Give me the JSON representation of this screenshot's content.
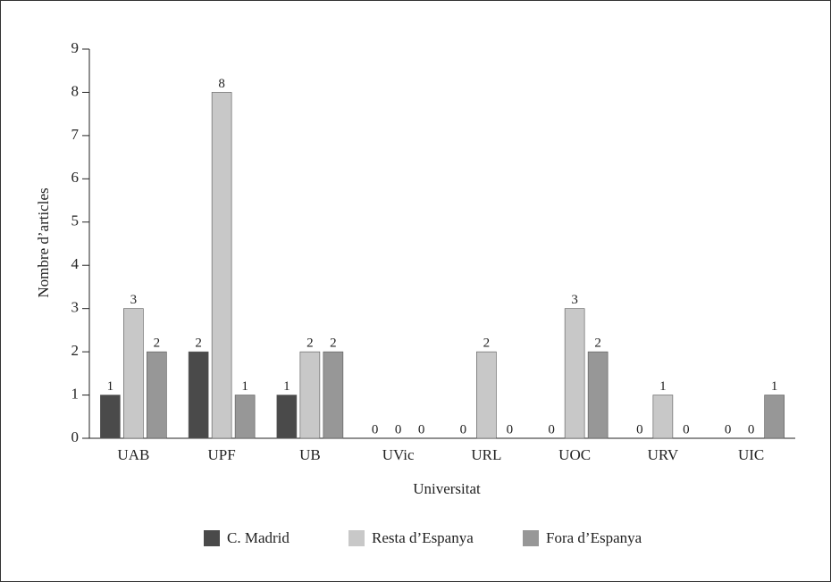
{
  "chart_data": {
    "type": "bar",
    "categories": [
      "UAB",
      "UPF",
      "UB",
      "UVic",
      "URL",
      "UOC",
      "URV",
      "UIC"
    ],
    "series": [
      {
        "name": "C. Madrid",
        "color": "#4a4a4a",
        "values": [
          1,
          2,
          1,
          0,
          0,
          0,
          0,
          0
        ]
      },
      {
        "name": "Resta d’Espanya",
        "color": "#c8c8c8",
        "values": [
          3,
          8,
          2,
          0,
          2,
          3,
          1,
          0
        ]
      },
      {
        "name": "Fora d’Espanya",
        "color": "#979797",
        "values": [
          2,
          1,
          2,
          0,
          0,
          2,
          0,
          1
        ]
      }
    ],
    "x_label": "Universitat",
    "y_label": "Nombre d’articles",
    "ylim": [
      0,
      9
    ],
    "yticks": [
      0,
      1,
      2,
      3,
      4,
      5,
      6,
      7,
      8,
      9
    ],
    "legend": "bottom"
  }
}
